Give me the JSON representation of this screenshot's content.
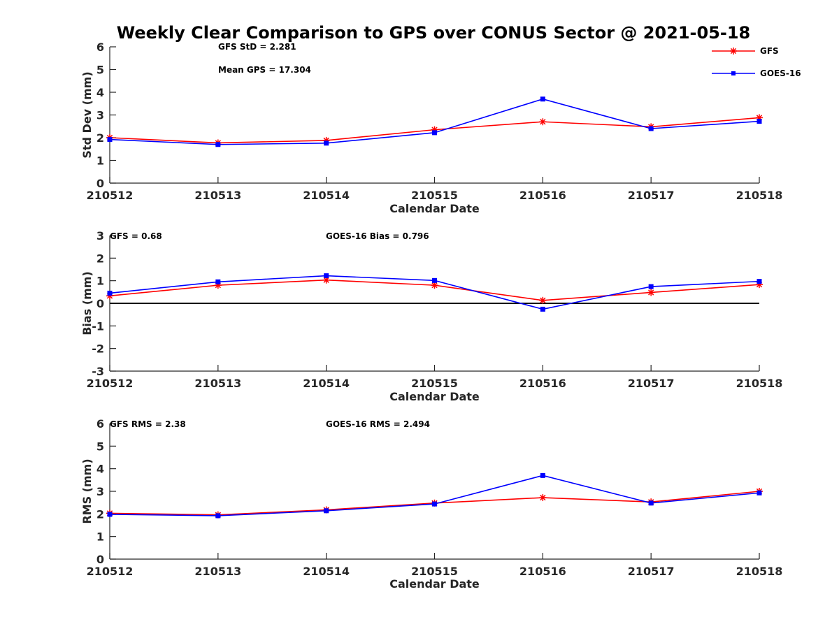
{
  "title": "Weekly Clear Comparison to GPS over CONUS Sector @ 2021-05-18",
  "colors": {
    "gfs": "#ff0000",
    "goes": "#0000ff",
    "axis": "#262626",
    "zero_line": "#000000"
  },
  "legend": {
    "placement": "top-right",
    "entries": [
      {
        "name": "GFS",
        "marker": "asterisk"
      },
      {
        "name": "GOES-16",
        "marker": "square"
      }
    ]
  },
  "chart_data": [
    {
      "type": "line",
      "categories": [
        "210512",
        "210513",
        "210514",
        "210515",
        "210516",
        "210517",
        "210518"
      ],
      "xlabel": "Calendar Date",
      "ylabel": "Std Dev (mm)",
      "ylim": [
        0,
        6
      ],
      "yticks": [
        "0",
        "1",
        "2",
        "3",
        "4",
        "5",
        "6"
      ],
      "zero_line": false,
      "series": [
        {
          "name": "GFS",
          "values": [
            2.0,
            1.77,
            1.88,
            2.35,
            2.7,
            2.48,
            2.88
          ]
        },
        {
          "name": "GOES-16",
          "values": [
            1.92,
            1.7,
            1.76,
            2.22,
            3.7,
            2.4,
            2.72
          ]
        }
      ],
      "annotations": [
        "GFS StD = 2.281",
        "Mean GPS = 17.304"
      ]
    },
    {
      "type": "line",
      "categories": [
        "210512",
        "210513",
        "210514",
        "210515",
        "210516",
        "210517",
        "210518"
      ],
      "xlabel": "Calendar Date",
      "ylabel": "Bias (mm)",
      "ylim": [
        -3,
        3
      ],
      "yticks": [
        "-3",
        "-2",
        "-1",
        "0",
        "1",
        "2",
        "3"
      ],
      "zero_line": true,
      "series": [
        {
          "name": "GFS",
          "values": [
            0.33,
            0.8,
            1.03,
            0.8,
            0.13,
            0.48,
            0.83
          ]
        },
        {
          "name": "GOES-16",
          "values": [
            0.45,
            0.95,
            1.22,
            1.01,
            -0.26,
            0.74,
            0.97
          ]
        }
      ],
      "annotations": [
        "GFS = 0.68",
        "GOES-16 Bias  = 0.796"
      ]
    },
    {
      "type": "line",
      "categories": [
        "210512",
        "210513",
        "210514",
        "210515",
        "210516",
        "210517",
        "210518"
      ],
      "xlabel": "Calendar Date",
      "ylabel": "RMS (mm)",
      "ylim": [
        0,
        6
      ],
      "yticks": [
        "0",
        "1",
        "2",
        "3",
        "4",
        "5",
        "6"
      ],
      "zero_line": false,
      "series": [
        {
          "name": "GFS",
          "values": [
            2.03,
            1.96,
            2.18,
            2.48,
            2.72,
            2.53,
            3.0
          ]
        },
        {
          "name": "GOES-16",
          "values": [
            1.98,
            1.92,
            2.14,
            2.44,
            3.7,
            2.48,
            2.93
          ]
        }
      ],
      "annotations": [
        "GFS RMS = 2.38",
        "GOES-16 RMS = 2.494"
      ]
    }
  ]
}
